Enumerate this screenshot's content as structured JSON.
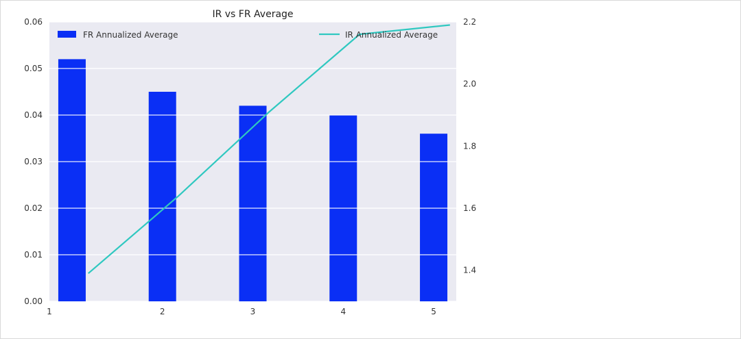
{
  "chart_data": {
    "type": "bar",
    "title": "IR vs FR Average",
    "x": [
      1,
      2,
      3,
      4,
      5
    ],
    "xticks": [
      "1",
      "2",
      "3",
      "4",
      "5"
    ],
    "series": [
      {
        "name": "FR Annualized Average",
        "kind": "bar",
        "axis": "left",
        "color": "#0a2ff5",
        "values": [
          0.052,
          0.045,
          0.042,
          0.04,
          0.036
        ]
      },
      {
        "name": "IR Annualized Average",
        "kind": "line",
        "axis": "right",
        "color": "#2fc8c0",
        "values": [
          1.39,
          1.64,
          1.91,
          2.16,
          2.19
        ]
      }
    ],
    "y_left": {
      "lim": [
        0,
        0.06
      ],
      "ticks": [
        0.0,
        0.01,
        0.02,
        0.03,
        0.04,
        0.05,
        0.06
      ],
      "tick_labels": [
        "0.00",
        "0.01",
        "0.02",
        "0.03",
        "0.04",
        "0.05",
        "0.06"
      ]
    },
    "y_right": {
      "lim": [
        1.3,
        2.2
      ],
      "ticks": [
        1.4,
        1.6,
        1.8,
        2.0,
        2.2
      ],
      "tick_labels": [
        "1.4",
        "1.6",
        "1.8",
        "2.0",
        "2.2"
      ]
    },
    "xlabel": "",
    "ylabel": "",
    "grid": true,
    "legend_left": "top-left",
    "legend_right": "top-right",
    "plot_background": "#eaeaf2"
  }
}
